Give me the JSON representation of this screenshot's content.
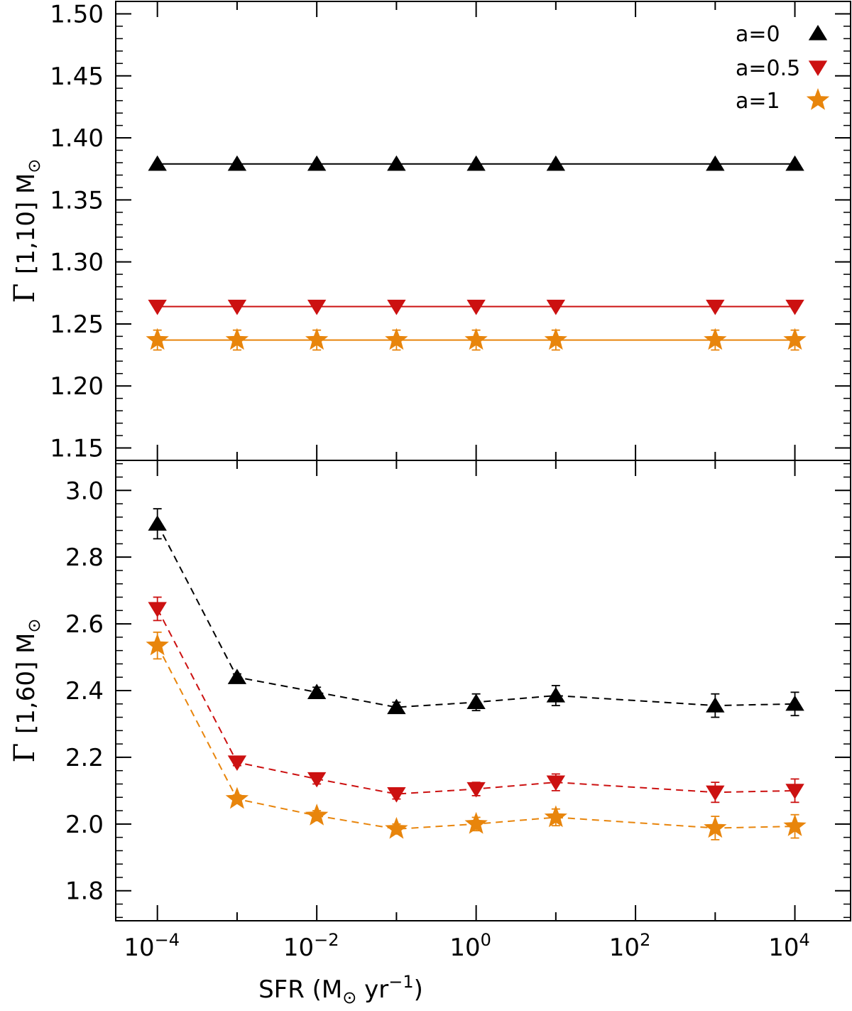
{
  "chart_data": [
    {
      "type": "line",
      "panel": "top",
      "title": "",
      "xlabel": "",
      "ylabel": "Γ [1,10] M⊙",
      "ylabel_parts": {
        "symbol": "Γ",
        "range": "[1,10]",
        "unit": "M",
        "unit_sub": "⊙"
      },
      "xscale": "log",
      "xlim": [
        3e-05,
        50000
      ],
      "ylim": [
        1.14,
        1.51
      ],
      "yticks": [
        1.15,
        1.2,
        1.25,
        1.3,
        1.35,
        1.4,
        1.45,
        1.5
      ],
      "ytick_labels": [
        "1.15",
        "1.20",
        "1.25",
        "1.30",
        "1.35",
        "1.40",
        "1.45",
        "1.50"
      ],
      "x": [
        0.0001,
        0.001,
        0.01,
        0.1,
        1,
        10,
        1000,
        10000
      ],
      "line_style": "solid",
      "series": [
        {
          "name": "a=0",
          "color": "#000000",
          "marker": "triangle-up",
          "values": [
            1.379,
            1.379,
            1.379,
            1.379,
            1.379,
            1.379,
            1.379,
            1.379
          ],
          "errors": [
            0,
            0,
            0,
            0,
            0,
            0,
            0,
            0
          ]
        },
        {
          "name": "a=0.5",
          "color": "#cc1111",
          "marker": "triangle-down",
          "values": [
            1.264,
            1.264,
            1.264,
            1.264,
            1.264,
            1.264,
            1.264,
            1.264
          ],
          "errors": [
            0,
            0,
            0,
            0,
            0,
            0,
            0,
            0
          ]
        },
        {
          "name": "a=1",
          "color": "#e8850c",
          "marker": "star",
          "values": [
            1.237,
            1.237,
            1.237,
            1.237,
            1.237,
            1.237,
            1.237,
            1.237
          ],
          "errors": [
            0.008,
            0.008,
            0.008,
            0.008,
            0.008,
            0.008,
            0.008,
            0.008
          ]
        }
      ],
      "legend": {
        "position": "top-right",
        "entries": [
          {
            "label": "a=0",
            "marker": "triangle-up",
            "color": "#000000"
          },
          {
            "label": "a=0.5",
            "marker": "triangle-down",
            "color": "#cc1111"
          },
          {
            "label": "a=1",
            "marker": "star",
            "color": "#e8850c"
          }
        ]
      }
    },
    {
      "type": "line",
      "panel": "bottom",
      "title": "",
      "xlabel": "SFR (M⊙ yr⁻¹)",
      "xlabel_parts": {
        "prefix": "SFR (M",
        "sub": "⊙",
        "mid": " yr",
        "sup": "−1",
        "suffix": ")"
      },
      "ylabel": "Γ [1,60] M⊙",
      "ylabel_parts": {
        "symbol": "Γ",
        "range": "[1,60]",
        "unit": "M",
        "unit_sub": "⊙"
      },
      "xscale": "log",
      "xlim": [
        3e-05,
        50000
      ],
      "ylim": [
        1.71,
        3.09
      ],
      "yticks": [
        1.8,
        2.0,
        2.2,
        2.4,
        2.6,
        2.8,
        3.0
      ],
      "ytick_labels": [
        "1.8",
        "2.0",
        "2.2",
        "2.4",
        "2.6",
        "2.8",
        "3.0"
      ],
      "xticks": [
        0.0001,
        0.01,
        1,
        100,
        10000
      ],
      "xtick_labels": [
        {
          "base": "10",
          "exp": "−4"
        },
        {
          "base": "10",
          "exp": "−2"
        },
        {
          "base": "10",
          "exp": "0"
        },
        {
          "base": "10",
          "exp": "2"
        },
        {
          "base": "10",
          "exp": "4"
        }
      ],
      "x": [
        0.0001,
        0.001,
        0.01,
        0.1,
        1,
        10,
        1000,
        10000
      ],
      "line_style": "dashed",
      "series": [
        {
          "name": "a=0",
          "color": "#000000",
          "marker": "triangle-up",
          "values": [
            2.9,
            2.44,
            2.395,
            2.35,
            2.365,
            2.385,
            2.355,
            2.36
          ],
          "errors": [
            0.045,
            0.01,
            0.015,
            0.015,
            0.025,
            0.03,
            0.035,
            0.035
          ]
        },
        {
          "name": "a=0.5",
          "color": "#cc1111",
          "marker": "triangle-down",
          "values": [
            2.645,
            2.185,
            2.135,
            2.09,
            2.105,
            2.125,
            2.095,
            2.1
          ],
          "errors": [
            0.035,
            0.01,
            0.015,
            0.015,
            0.02,
            0.025,
            0.03,
            0.035
          ]
        },
        {
          "name": "a=1",
          "color": "#e8850c",
          "marker": "star",
          "values": [
            2.535,
            2.075,
            2.025,
            1.985,
            2.0,
            2.02,
            1.988,
            1.993
          ],
          "errors": [
            0.04,
            0.012,
            0.015,
            0.015,
            0.02,
            0.025,
            0.035,
            0.035
          ]
        }
      ]
    }
  ]
}
